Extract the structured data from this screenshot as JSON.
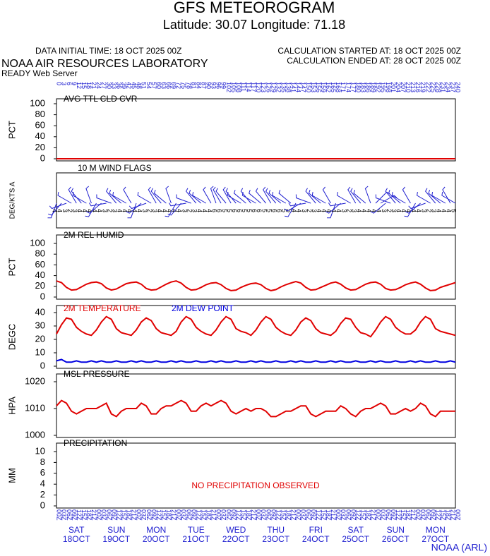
{
  "header": {
    "title": "GFS METEOROGRAM",
    "subtitle": "Latitude: 30.07 Longitude:  71.18",
    "data_initial_time": "DATA INITIAL TIME: 18 OCT 2025 00Z",
    "calc_started": "CALCULATION STARTED AT: 18 OCT 2025 00Z",
    "calc_ended": "CALCULATION ENDED AT: 28 OCT 2025 00Z",
    "org": "NOAA AIR RESOURCES LABORATORY",
    "server": "READY Web Server",
    "footer": "NOAA (ARL)"
  },
  "time_axis": {
    "xlim": [
      0,
      240
    ],
    "hours": [
      0,
      3,
      6,
      9,
      12,
      15,
      18,
      21,
      24,
      27,
      30,
      33,
      36,
      39,
      42,
      45,
      48,
      51,
      54,
      57,
      60,
      63,
      66,
      69,
      72,
      75,
      78,
      81,
      84,
      87,
      90,
      93,
      96,
      99,
      102,
      105,
      108,
      111,
      114,
      117,
      120,
      123,
      126,
      129,
      132,
      135,
      138,
      141,
      144,
      147,
      150,
      153,
      156,
      159,
      162,
      165,
      168,
      171,
      174,
      177,
      180,
      183,
      186,
      189,
      192,
      195,
      198,
      201,
      204,
      207,
      210,
      213,
      216,
      219,
      222,
      225,
      228,
      231,
      234,
      237,
      240
    ],
    "hour_labels": [
      "00Z",
      "03Z",
      "06Z",
      "09Z",
      "12Z",
      "15Z",
      "18Z",
      "21Z",
      "00Z",
      "03Z",
      "06Z",
      "09Z",
      "12Z",
      "15Z",
      "18Z",
      "21Z",
      "00Z",
      "03Z",
      "06Z",
      "09Z",
      "12Z",
      "15Z",
      "18Z",
      "21Z",
      "00Z",
      "03Z",
      "06Z",
      "09Z",
      "12Z",
      "15Z",
      "18Z",
      "21Z",
      "00Z",
      "03Z",
      "06Z",
      "09Z",
      "12Z",
      "15Z",
      "18Z",
      "21Z",
      "00Z",
      "03Z",
      "06Z",
      "09Z",
      "12Z",
      "15Z",
      "18Z",
      "21Z",
      "00Z",
      "03Z",
      "06Z",
      "09Z",
      "12Z",
      "15Z",
      "18Z",
      "21Z",
      "00Z",
      "03Z",
      "06Z",
      "09Z",
      "12Z",
      "15Z",
      "18Z",
      "21Z",
      "00Z",
      "03Z",
      "06Z",
      "09Z",
      "12Z",
      "15Z",
      "18Z",
      "21Z",
      "00Z",
      "03Z",
      "06Z",
      "09Z",
      "12Z",
      "15Z",
      "18Z",
      "21Z",
      "00Z"
    ],
    "days": [
      {
        "day": "SAT",
        "date": "18OCT"
      },
      {
        "day": "SUN",
        "date": "19OCT"
      },
      {
        "day": "MON",
        "date": "20OCT"
      },
      {
        "day": "TUE",
        "date": "21OCT"
      },
      {
        "day": "WED",
        "date": "22OCT"
      },
      {
        "day": "THU",
        "date": "23OCT"
      },
      {
        "day": "FRI",
        "date": "24OCT"
      },
      {
        "day": "SAT",
        "date": "25OCT"
      },
      {
        "day": "SUN",
        "date": "26OCT"
      },
      {
        "day": "MON",
        "date": "27OCT"
      }
    ]
  },
  "chart_data": [
    {
      "type": "line",
      "title": "AVG TTL CLD CVR",
      "ylabel": "PCT",
      "ylim": [
        0,
        100
      ],
      "yticks": [
        0,
        20,
        40,
        60,
        80,
        100
      ],
      "series": [
        {
          "color": "#e00000",
          "values": [
            0,
            0,
            0,
            0,
            0,
            0,
            0,
            0,
            0,
            0,
            0,
            0,
            0,
            0,
            0,
            0,
            0,
            0,
            0,
            0,
            0,
            0,
            0,
            0,
            0,
            0,
            0,
            0,
            0,
            0,
            0,
            0,
            0,
            0,
            0,
            0,
            0,
            0,
            0,
            0,
            0,
            0,
            0,
            0,
            0,
            0,
            0,
            0,
            0,
            0,
            0,
            0,
            0,
            0,
            0,
            0,
            0,
            0,
            0,
            0,
            0,
            0,
            0,
            0,
            0,
            0,
            0,
            0,
            0,
            0,
            0,
            0,
            0,
            0,
            0,
            0,
            0,
            0,
            0,
            0,
            0
          ]
        }
      ]
    },
    {
      "type": "wind_flags",
      "title": "10 M  WIND FLAGS",
      "ylabel": "DEG/KTS  A",
      "directions": [
        200,
        220,
        250,
        300,
        330,
        320,
        300,
        340,
        210,
        230,
        260,
        290,
        320,
        310,
        300,
        330,
        200,
        230,
        250,
        300,
        330,
        320,
        310,
        340,
        210,
        220,
        260,
        290,
        320,
        310,
        300,
        330,
        340,
        330,
        320,
        330,
        320,
        300,
        310,
        320,
        300,
        310,
        320,
        330,
        320,
        310,
        300,
        310,
        210,
        240,
        260,
        290,
        320,
        310,
        300,
        330,
        200,
        230,
        260,
        300,
        330,
        320,
        310,
        340,
        45,
        60,
        230,
        290,
        320,
        310,
        300,
        330,
        210,
        230,
        250,
        300,
        320,
        310,
        300,
        330,
        300
      ],
      "speeds": [
        4,
        4,
        3,
        2,
        3,
        4,
        4,
        4,
        4,
        4,
        3,
        2,
        3,
        4,
        4,
        4,
        4,
        4,
        3,
        2,
        3,
        4,
        4,
        4,
        4,
        4,
        3,
        2,
        3,
        4,
        4,
        4,
        6,
        6,
        5,
        5,
        6,
        6,
        5,
        5,
        6,
        6,
        5,
        5,
        6,
        6,
        5,
        5,
        4,
        4,
        3,
        2,
        3,
        4,
        4,
        4,
        4,
        4,
        3,
        2,
        3,
        4,
        4,
        4,
        4,
        4,
        3,
        2,
        3,
        4,
        4,
        4,
        4,
        4,
        3,
        2,
        3,
        4,
        4,
        4,
        5
      ]
    },
    {
      "type": "line",
      "title": "2M REL HUMID",
      "ylabel": "PCT",
      "ylim": [
        0,
        100
      ],
      "yticks": [
        0,
        20,
        40,
        60,
        80,
        100
      ],
      "series": [
        {
          "color": "#e00000",
          "values": [
            30,
            27,
            18,
            13,
            14,
            19,
            24,
            27,
            28,
            25,
            17,
            13,
            15,
            20,
            25,
            27,
            28,
            24,
            16,
            13,
            14,
            19,
            24,
            28,
            30,
            26,
            18,
            13,
            14,
            18,
            23,
            26,
            27,
            23,
            16,
            12,
            13,
            18,
            22,
            25,
            26,
            23,
            16,
            12,
            14,
            19,
            23,
            26,
            29,
            26,
            18,
            13,
            14,
            18,
            22,
            26,
            28,
            24,
            17,
            13,
            14,
            19,
            24,
            27,
            28,
            24,
            16,
            13,
            14,
            18,
            23,
            26,
            28,
            24,
            17,
            12,
            13,
            18,
            21,
            24,
            27
          ]
        }
      ]
    },
    {
      "type": "line",
      "ylabel": "DEGC",
      "ylim": [
        0,
        40
      ],
      "yticks": [
        0,
        10,
        20,
        30,
        40
      ],
      "series": [
        {
          "name": "2M TEMPERATURE",
          "color": "#e00000",
          "values": [
            24,
            31,
            36,
            35,
            29,
            26,
            24,
            23,
            27,
            33,
            37,
            35,
            28,
            25,
            24,
            23,
            27,
            33,
            36,
            34,
            28,
            25,
            24,
            23,
            26,
            33,
            37,
            35,
            29,
            26,
            24,
            23,
            27,
            33,
            37,
            35,
            28,
            26,
            25,
            23,
            27,
            33,
            37,
            35,
            29,
            26,
            24,
            23,
            27,
            33,
            36,
            34,
            28,
            25,
            24,
            23,
            26,
            32,
            36,
            35,
            29,
            25,
            24,
            22,
            27,
            33,
            37,
            35,
            29,
            26,
            24,
            24,
            27,
            33,
            37,
            35,
            28,
            26,
            25,
            24,
            23
          ]
        },
        {
          "name": "2M  DEW POINT",
          "color": "#0000e0",
          "values": [
            4,
            5,
            3,
            3,
            4,
            3,
            3,
            4,
            3,
            4,
            3,
            3,
            4,
            3,
            3,
            4,
            3,
            4,
            3,
            3,
            4,
            3,
            3,
            4,
            3,
            4,
            3,
            3,
            4,
            3,
            3,
            4,
            3,
            4,
            3,
            3,
            4,
            3,
            3,
            4,
            3,
            4,
            3,
            3,
            4,
            3,
            3,
            4,
            3,
            4,
            3,
            3,
            4,
            3,
            3,
            4,
            3,
            4,
            3,
            3,
            4,
            3,
            3,
            4,
            3,
            4,
            3,
            3,
            4,
            3,
            3,
            4,
            3,
            4,
            3,
            3,
            4,
            3,
            3,
            4,
            3
          ]
        }
      ]
    },
    {
      "type": "line",
      "title": "MSL PRESSURE",
      "ylabel": "HPA",
      "ylim": [
        1000,
        1020
      ],
      "yticks": [
        1000,
        1010,
        1020
      ],
      "series": [
        {
          "color": "#e00000",
          "values": [
            1011,
            1013,
            1012,
            1009,
            1008,
            1009,
            1010,
            1010,
            1010,
            1011,
            1012,
            1008,
            1007,
            1009,
            1010,
            1010,
            1010,
            1012,
            1011,
            1008,
            1008,
            1010,
            1011,
            1011,
            1012,
            1013,
            1012,
            1009,
            1009,
            1011,
            1012,
            1011,
            1012,
            1013,
            1012,
            1009,
            1008,
            1009,
            1010,
            1009,
            1010,
            1010,
            1009,
            1007,
            1007,
            1008,
            1009,
            1009,
            1010,
            1011,
            1011,
            1008,
            1007,
            1008,
            1009,
            1009,
            1009,
            1011,
            1010,
            1008,
            1007,
            1009,
            1010,
            1010,
            1011,
            1012,
            1011,
            1008,
            1008,
            1009,
            1010,
            1009,
            1010,
            1012,
            1011,
            1008,
            1007,
            1009,
            1009,
            1009,
            1009
          ]
        }
      ]
    },
    {
      "type": "line",
      "title": "PRECIPITATION",
      "ylabel": "MM",
      "ylim": [
        0,
        10
      ],
      "yticks": [
        0,
        2,
        4,
        6,
        8,
        10
      ],
      "annotation": "NO PRECIPITATION OBSERVED",
      "series": []
    }
  ]
}
